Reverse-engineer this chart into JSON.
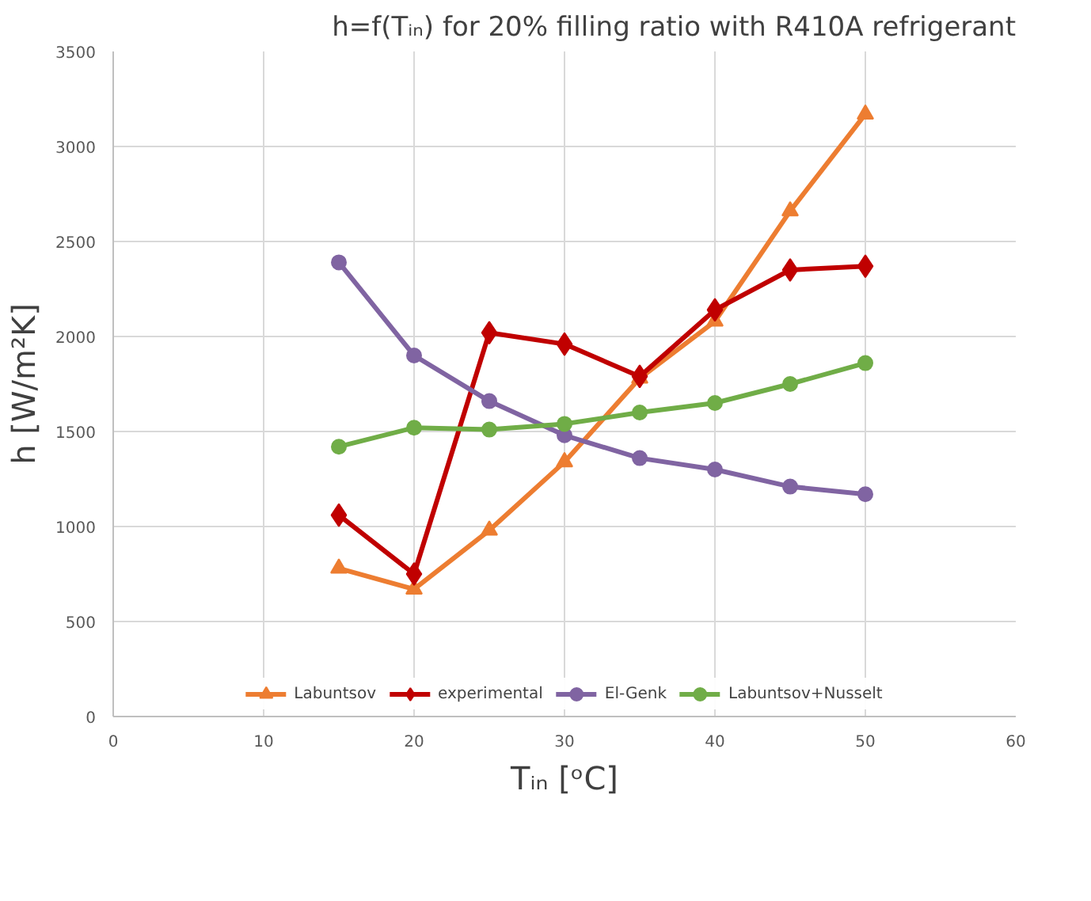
{
  "chart_data": {
    "type": "line",
    "title": "h=f(Tᵢₙ) for 20% filling ratio with R410A refrigerant",
    "xlabel": "Tᵢₙ [ᵒC]",
    "ylabel": "h [W/m²K]",
    "x": [
      15,
      20,
      25,
      30,
      35,
      40,
      45,
      50
    ],
    "series": [
      {
        "name": "Labuntsov",
        "color": "#ed7d31",
        "marker": "triangle",
        "values": [
          780,
          670,
          980,
          1340,
          1780,
          2080,
          2660,
          3170
        ]
      },
      {
        "name": "experimental",
        "color": "#c00000",
        "marker": "diamond",
        "values": [
          1060,
          750,
          2020,
          1960,
          1790,
          2140,
          2350,
          2370
        ]
      },
      {
        "name": "El-Genk",
        "color": "#8064a2",
        "marker": "circle",
        "values": [
          2390,
          1900,
          1660,
          1480,
          1360,
          1300,
          1210,
          1170
        ]
      },
      {
        "name": "Labuntsov+Nusselt",
        "color": "#70ad47",
        "marker": "circle",
        "values": [
          1420,
          1520,
          1510,
          1540,
          1600,
          1650,
          1750,
          1860
        ]
      }
    ],
    "xlim": [
      0,
      60
    ],
    "xticks": [
      0,
      10,
      20,
      30,
      40,
      50,
      60
    ],
    "ylim": [
      0,
      3500
    ],
    "yticks": [
      0,
      500,
      1000,
      1500,
      2000,
      2500,
      3000,
      3500
    ],
    "grid": true,
    "legend": "bottom",
    "line_style": "solid"
  }
}
